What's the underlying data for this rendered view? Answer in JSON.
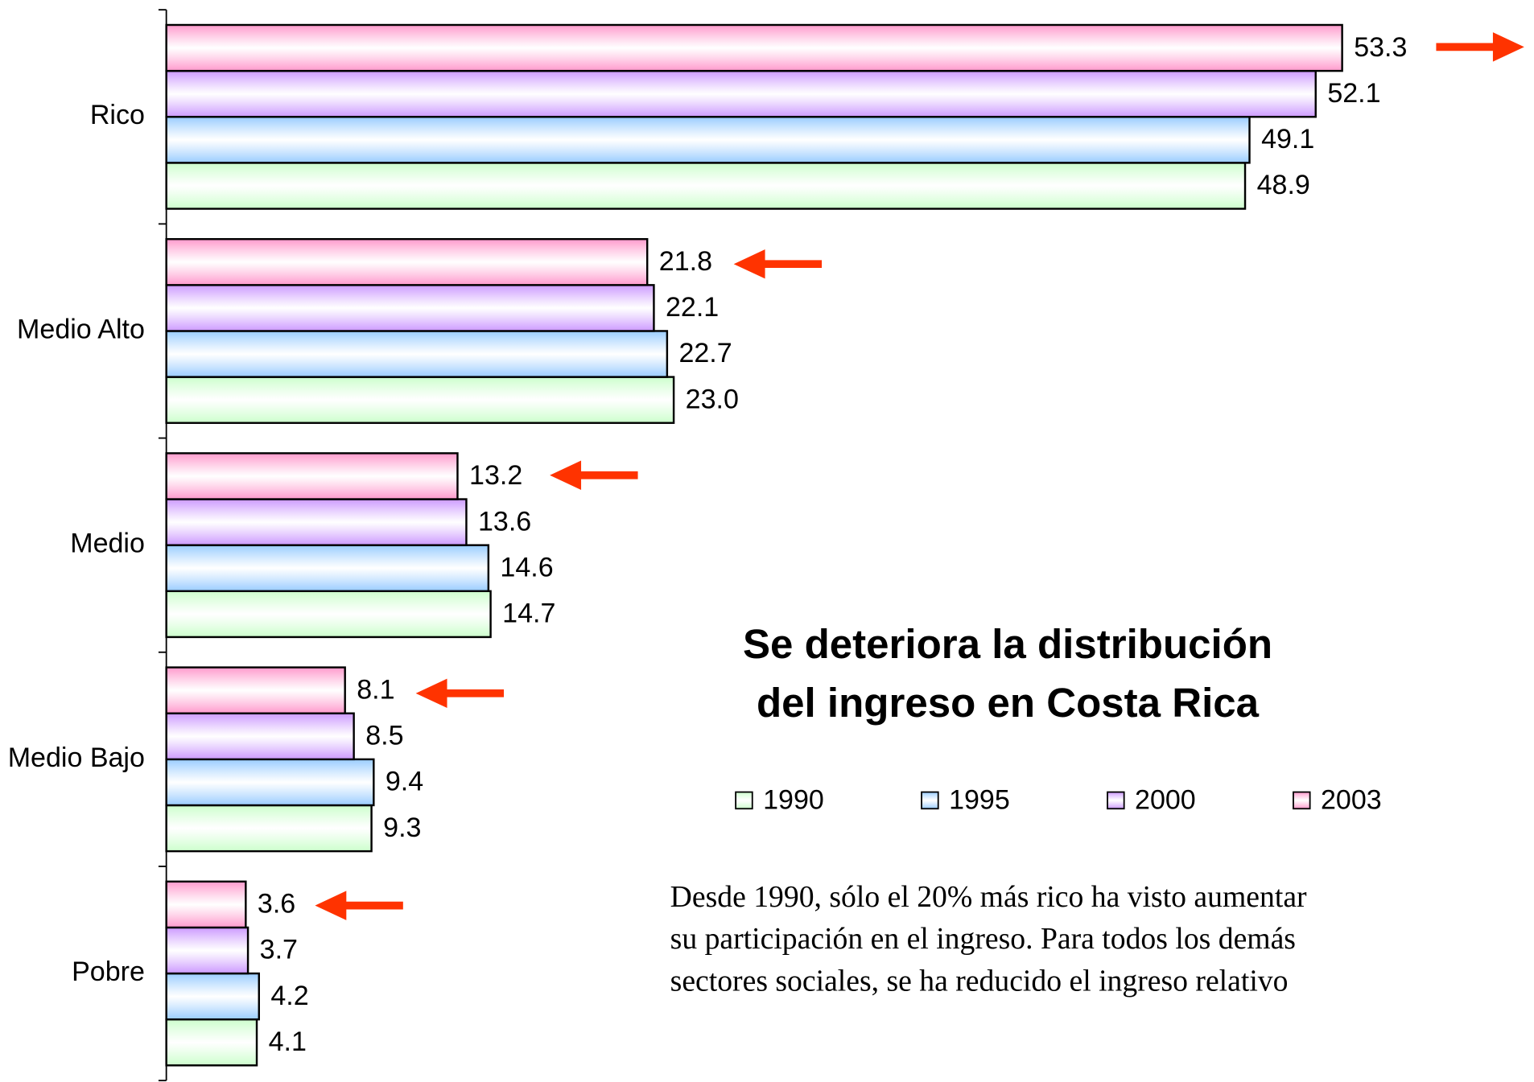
{
  "chart_data": {
    "type": "hbar",
    "title_lines": [
      "Se deteriora la distribución",
      "del ingreso en Costa Rica"
    ],
    "annotation_lines": [
      "Desde 1990, sólo el 20% más rico ha visto aumentar",
      "su participación en el ingreso. Para todos los demás",
      "sectores sociales, se ha reducido el ingreso relativo"
    ],
    "categories": [
      "Rico",
      "Medio Alto",
      "Medio",
      "Medio Bajo",
      "Pobre"
    ],
    "series": [
      {
        "name": "1990",
        "color": "#ccffcc",
        "values": [
          48.9,
          23.0,
          14.7,
          9.3,
          4.1
        ],
        "value_labels": [
          "48.9",
          "23.0",
          "14.7",
          "9.3",
          "4.1"
        ]
      },
      {
        "name": "1995",
        "color": "#99ccff",
        "values": [
          49.1,
          22.7,
          14.6,
          9.4,
          4.2
        ],
        "value_labels": [
          "49.1",
          "22.7",
          "14.6",
          "9.4",
          "4.2"
        ]
      },
      {
        "name": "2000",
        "color": "#cc99ff",
        "values": [
          52.1,
          22.1,
          13.6,
          8.5,
          3.7
        ],
        "value_labels": [
          "52.1",
          "22.1",
          "13.6",
          "8.5",
          "3.7"
        ]
      },
      {
        "name": "2003",
        "color": "#ff99cc",
        "values": [
          53.3,
          21.8,
          13.2,
          8.1,
          3.6
        ],
        "value_labels": [
          "53.3",
          "21.8",
          "13.2",
          "8.1",
          "3.6"
        ]
      }
    ],
    "xlim": [
      0,
      60
    ]
  }
}
